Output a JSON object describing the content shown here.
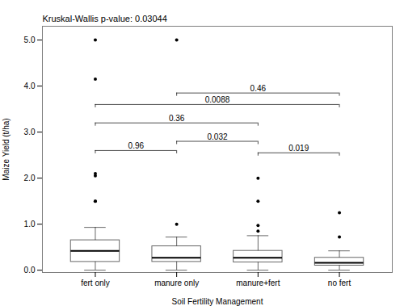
{
  "chart_data": {
    "type": "box",
    "categories": [
      "fert only",
      "manure only",
      "manure+fert",
      "no fert"
    ],
    "xlabel": "Soil Fertility Management",
    "ylabel": "Maize Yield (t/ha)",
    "ylim": [
      -0.05,
      5.3
    ],
    "yticks": [
      0,
      1,
      2,
      3,
      4,
      5
    ],
    "annotation": "Kruskal-Wallis p-value: 0.03044",
    "boxes": [
      {
        "q1": 0.18,
        "median": 0.42,
        "q3": 0.65,
        "whisker_low": 0.0,
        "whisker_high": 0.93,
        "outliers": [
          1.5,
          1.5,
          2.05,
          2.1,
          4.15,
          5.0
        ]
      },
      {
        "q1": 0.18,
        "median": 0.27,
        "q3": 0.52,
        "whisker_low": 0.0,
        "whisker_high": 0.72,
        "outliers": [
          1.0,
          5.0
        ]
      },
      {
        "q1": 0.17,
        "median": 0.27,
        "q3": 0.42,
        "whisker_low": 0.0,
        "whisker_high": 0.75,
        "outliers": [
          0.85,
          0.97,
          1.5,
          2.0
        ]
      },
      {
        "q1": 0.1,
        "median": 0.16,
        "q3": 0.27,
        "whisker_low": 0.0,
        "whisker_high": 0.42,
        "outliers": [
          0.72,
          1.25
        ]
      }
    ],
    "brackets": [
      {
        "left": "fert only",
        "right": "manure only",
        "y": 2.6,
        "label": "0.96"
      },
      {
        "left": "manure only",
        "right": "manure+fert",
        "y": 2.8,
        "label": "0.032"
      },
      {
        "left": "manure+fert",
        "right": "no fert",
        "y": 2.55,
        "label": "0.019"
      },
      {
        "left": "fert only",
        "right": "manure+fert",
        "y": 3.2,
        "label": "0.36"
      },
      {
        "left": "manure only",
        "right": "no fert",
        "y": 3.85,
        "label": "0.46"
      },
      {
        "left": "fert only",
        "right": "no fert",
        "y": 3.6,
        "label": "0.0088"
      }
    ]
  }
}
